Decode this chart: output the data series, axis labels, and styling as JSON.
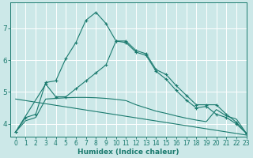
{
  "xlabel": "Humidex (Indice chaleur)",
  "xlim": [
    -0.5,
    23
  ],
  "ylim": [
    3.6,
    7.8
  ],
  "yticks": [
    4,
    5,
    6,
    7
  ],
  "xticks": [
    0,
    1,
    2,
    3,
    4,
    5,
    6,
    7,
    8,
    9,
    10,
    11,
    12,
    13,
    14,
    15,
    16,
    17,
    18,
    19,
    20,
    21,
    22,
    23
  ],
  "bg_color": "#cce8e8",
  "grid_color": "#b0d4d4",
  "line_color": "#1a7a6e",
  "lines": [
    {
      "x": [
        0,
        1,
        2,
        3,
        4,
        5,
        6,
        7,
        8,
        9,
        10,
        11,
        12,
        13,
        14,
        15,
        16,
        17,
        18,
        19,
        20,
        21,
        22,
        23
      ],
      "y": [
        3.75,
        4.2,
        4.3,
        5.3,
        5.35,
        6.05,
        6.55,
        7.25,
        7.5,
        7.15,
        6.6,
        6.55,
        6.25,
        6.15,
        5.65,
        5.4,
        5.05,
        4.75,
        4.5,
        4.55,
        4.3,
        4.2,
        4.0,
        3.7
      ],
      "marker": "+"
    },
    {
      "x": [
        0,
        3,
        4,
        5,
        6,
        7,
        8,
        9,
        10,
        11,
        12,
        13,
        14,
        15,
        16,
        17,
        18,
        19,
        20,
        21,
        22,
        23
      ],
      "y": [
        3.75,
        5.25,
        4.85,
        4.85,
        5.1,
        5.35,
        5.6,
        5.85,
        6.6,
        6.6,
        6.3,
        6.2,
        5.7,
        5.55,
        5.2,
        4.9,
        4.6,
        4.6,
        4.6,
        4.3,
        4.05,
        3.7
      ],
      "marker": "+"
    },
    {
      "x": [
        0,
        1,
        2,
        3,
        4,
        5,
        6,
        7,
        8,
        9,
        10,
        11,
        12,
        13,
        14,
        15,
        16,
        17,
        18,
        19,
        20,
        21,
        22,
        23
      ],
      "y": [
        3.75,
        4.1,
        4.2,
        4.78,
        4.8,
        4.82,
        4.83,
        4.83,
        4.82,
        4.8,
        4.77,
        4.73,
        4.6,
        4.5,
        4.4,
        4.33,
        4.25,
        4.18,
        4.12,
        4.07,
        4.45,
        4.25,
        4.15,
        3.7
      ],
      "marker": null
    },
    {
      "x": [
        0,
        23
      ],
      "y": [
        4.78,
        3.65
      ],
      "marker": null
    }
  ]
}
